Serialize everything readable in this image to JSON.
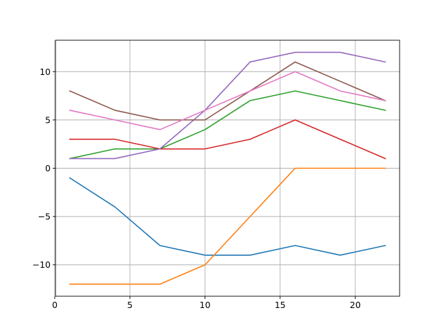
{
  "chart_data": {
    "type": "line",
    "title": "",
    "xlabel": "",
    "ylabel": "",
    "x": [
      1,
      4,
      7,
      10,
      13,
      16,
      19,
      22
    ],
    "xlim": [
      0.05,
      22.95
    ],
    "ylim": [
      -13.25,
      13.25
    ],
    "xticks": [
      0,
      5,
      10,
      15,
      20
    ],
    "yticks": [
      -10,
      -5,
      0,
      5,
      10
    ],
    "xtick_labels": [
      "0",
      "5",
      "10",
      "15",
      "20"
    ],
    "ytick_labels": [
      "−10",
      "−5",
      "0",
      "5",
      "10"
    ],
    "grid": true,
    "legend": "none",
    "series": [
      {
        "color": "#1f77b4",
        "values": [
          -1,
          -4,
          -8,
          -9,
          -9,
          -8,
          -9,
          -8
        ]
      },
      {
        "color": "#ff7f0e",
        "values": [
          -12,
          -12,
          -12,
          -10,
          -5,
          0,
          0,
          0
        ]
      },
      {
        "color": "#2ca02c",
        "values": [
          1,
          2,
          2,
          4,
          7,
          8,
          7,
          6
        ]
      },
      {
        "color": "#d62728",
        "values": [
          3,
          3,
          2,
          2,
          3,
          5,
          3,
          1
        ]
      },
      {
        "color": "#9467bd",
        "values": [
          1,
          1,
          2,
          6,
          11,
          12,
          12,
          11
        ]
      },
      {
        "color": "#8c564b",
        "values": [
          8,
          6,
          5,
          5,
          8,
          11,
          9,
          7
        ]
      },
      {
        "color": "#e377c2",
        "values": [
          6,
          5,
          4,
          6,
          8,
          10,
          8,
          7
        ]
      }
    ]
  }
}
